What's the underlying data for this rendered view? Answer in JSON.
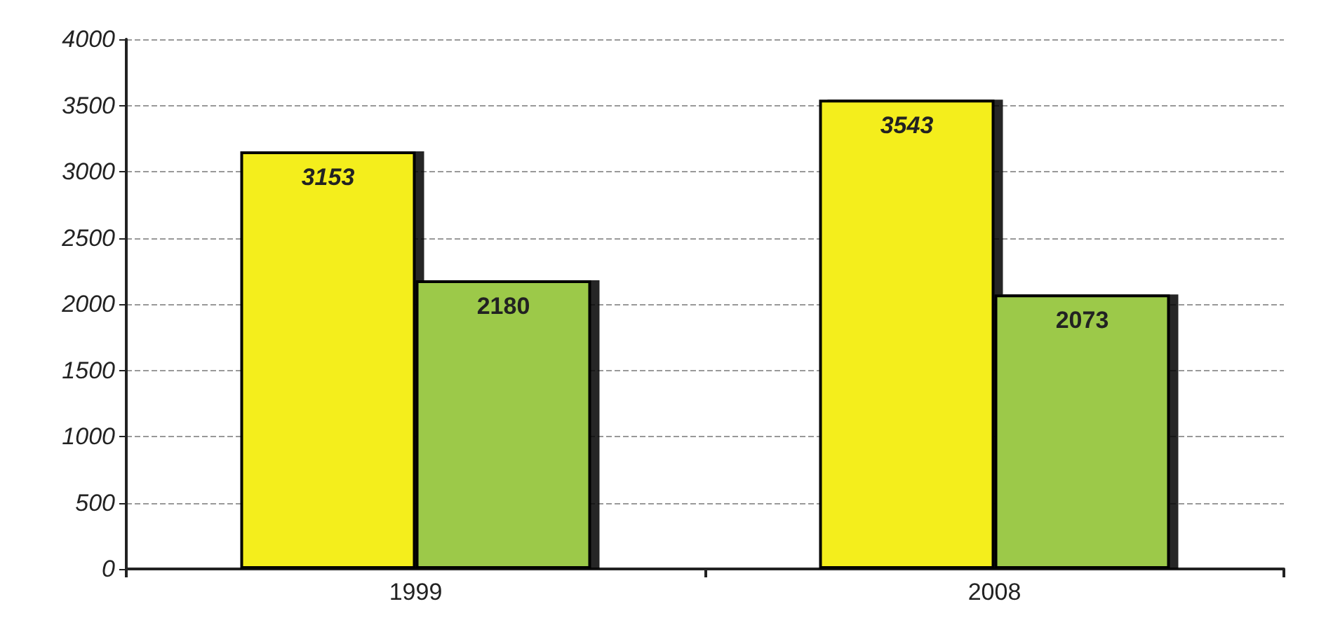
{
  "chart_data": {
    "type": "bar",
    "categories": [
      "1999",
      "2008"
    ],
    "series": [
      {
        "color": "#f4ee1c",
        "values": [
          3153,
          3543
        ]
      },
      {
        "color": "#9cc94a",
        "values": [
          2180,
          2073
        ]
      }
    ],
    "ylim": [
      0,
      4000
    ],
    "yticks": [
      0,
      500,
      1000,
      1500,
      2000,
      2500,
      3000,
      3500,
      4000
    ],
    "grid": "y",
    "data_labels": true
  }
}
